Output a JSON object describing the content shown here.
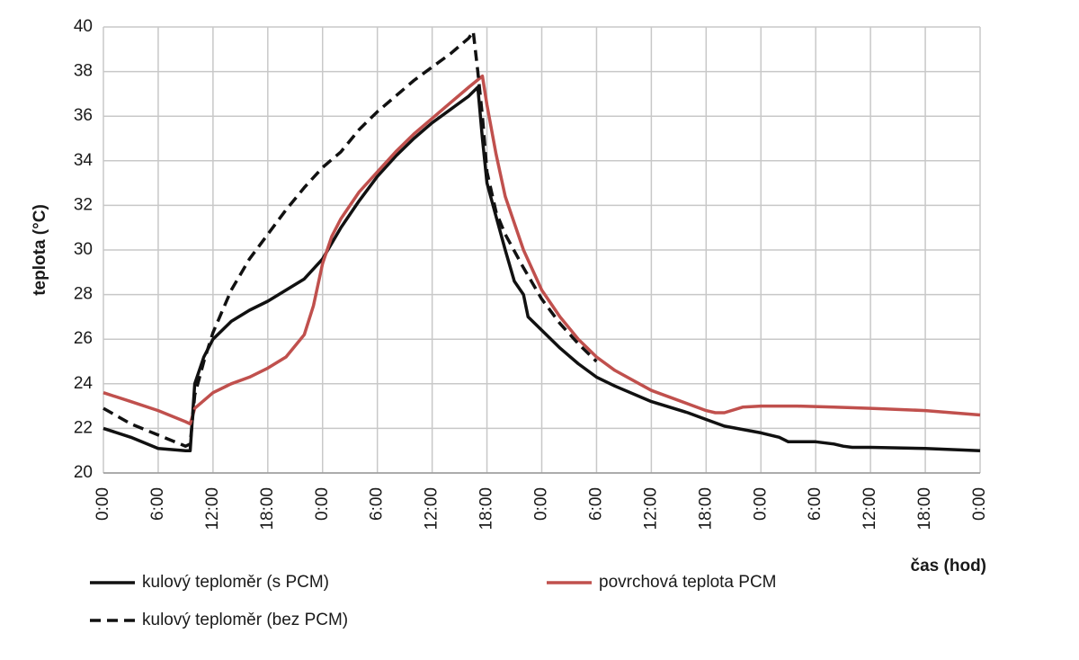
{
  "chart_data": {
    "type": "line",
    "x_label": "čas (hod)",
    "y_label": "teplota (°C)",
    "xlim": [
      0,
      96
    ],
    "ylim": [
      20,
      40
    ],
    "xticks": [
      {
        "value": 0,
        "label": "0:00"
      },
      {
        "value": 6,
        "label": "6:00"
      },
      {
        "value": 12,
        "label": "12:00"
      },
      {
        "value": 18,
        "label": "18:00"
      },
      {
        "value": 24,
        "label": "0:00"
      },
      {
        "value": 30,
        "label": "6:00"
      },
      {
        "value": 36,
        "label": "12:00"
      },
      {
        "value": 42,
        "label": "18:00"
      },
      {
        "value": 48,
        "label": "0:00"
      },
      {
        "value": 54,
        "label": "6:00"
      },
      {
        "value": 60,
        "label": "12:00"
      },
      {
        "value": 66,
        "label": "18:00"
      },
      {
        "value": 72,
        "label": "0:00"
      },
      {
        "value": 78,
        "label": "6:00"
      },
      {
        "value": 84,
        "label": "12:00"
      },
      {
        "value": 90,
        "label": "18:00"
      },
      {
        "value": 96,
        "label": "0:00"
      }
    ],
    "yticks": [
      20,
      22,
      24,
      26,
      28,
      30,
      32,
      34,
      36,
      38,
      40
    ],
    "grid": true,
    "series": [
      {
        "name": "kulový teploměr (s PCM)",
        "color": "#111111",
        "dash": false,
        "x": [
          0,
          3,
          6,
          9,
          9.5,
          10,
          11,
          12,
          14,
          16,
          18,
          20,
          22,
          24,
          26,
          28,
          30,
          32,
          34,
          36,
          38,
          40,
          41,
          41.5,
          42,
          43,
          44,
          45,
          46,
          46.5,
          48,
          50,
          52,
          54,
          56,
          60,
          64,
          66,
          68,
          72,
          74,
          75,
          78,
          80,
          81,
          82,
          84,
          90,
          96
        ],
        "values": [
          22.0,
          21.6,
          21.1,
          21.0,
          21.0,
          24.0,
          25.2,
          26.0,
          26.8,
          27.3,
          27.7,
          28.2,
          28.7,
          29.6,
          31.0,
          32.2,
          33.3,
          34.2,
          35.0,
          35.7,
          36.3,
          36.9,
          37.3,
          35.0,
          33.0,
          31.5,
          30.0,
          28.6,
          28.0,
          27.0,
          26.4,
          25.6,
          24.9,
          24.3,
          23.9,
          23.2,
          22.7,
          22.4,
          22.1,
          21.8,
          21.6,
          21.4,
          21.4,
          21.3,
          21.2,
          21.15,
          21.15,
          21.1,
          21.0
        ]
      },
      {
        "name": "povrchová teplota PCM",
        "color": "#c0504d",
        "dash": false,
        "x": [
          0,
          3,
          6,
          9,
          9.5,
          10,
          12,
          14,
          16,
          18,
          20,
          22,
          23,
          24,
          25,
          26,
          28,
          30,
          32,
          34,
          36,
          38,
          40,
          41.5,
          42,
          43,
          44,
          46,
          48,
          50,
          52,
          54,
          56,
          60,
          64,
          66,
          67,
          68,
          70,
          72,
          76,
          80,
          84,
          90,
          96
        ],
        "values": [
          23.6,
          23.2,
          22.8,
          22.3,
          22.2,
          22.9,
          23.6,
          24.0,
          24.3,
          24.7,
          25.2,
          26.2,
          27.5,
          29.4,
          30.6,
          31.4,
          32.6,
          33.5,
          34.4,
          35.2,
          35.9,
          36.6,
          37.3,
          37.8,
          36.5,
          34.3,
          32.4,
          30.0,
          28.2,
          27.0,
          26.0,
          25.2,
          24.6,
          23.7,
          23.1,
          22.8,
          22.7,
          22.7,
          22.95,
          23.0,
          23.0,
          22.95,
          22.9,
          22.8,
          22.6
        ]
      },
      {
        "name": "kulový teploměr (bez PCM)",
        "color": "#111111",
        "dash": true,
        "x": [
          0,
          3,
          6,
          9,
          9.5,
          10,
          11,
          12,
          14,
          16,
          18,
          20,
          22,
          24,
          26,
          28,
          30,
          32,
          34,
          36,
          38,
          40,
          40.5,
          41,
          41.5,
          42,
          43,
          44,
          46,
          48,
          50,
          52,
          54
        ],
        "values": [
          22.9,
          22.2,
          21.7,
          21.2,
          21.3,
          23.5,
          25.0,
          26.3,
          28.2,
          29.6,
          30.7,
          31.8,
          32.8,
          33.7,
          34.4,
          35.4,
          36.2,
          36.9,
          37.6,
          38.2,
          38.8,
          39.5,
          39.8,
          38.0,
          36.0,
          33.5,
          31.7,
          30.7,
          29.2,
          27.8,
          26.7,
          25.8,
          25.0
        ]
      }
    ]
  }
}
